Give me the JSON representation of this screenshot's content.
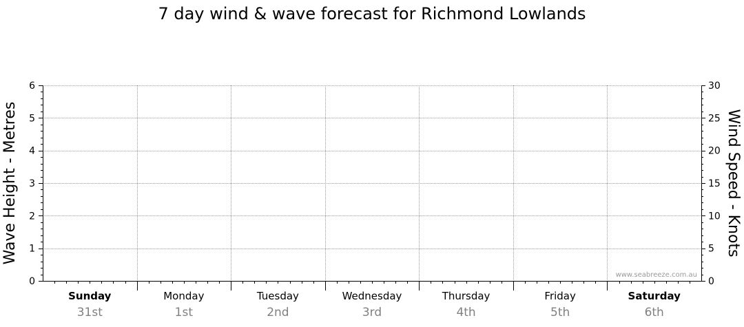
{
  "chart_data": {
    "type": "line",
    "title": "7 day wind & wave forecast for Richmond Lowlands",
    "ylabel": "Wave Height - Metres",
    "y2label": "Wind Speed - Knots",
    "ylim": [
      0,
      6
    ],
    "y2lim": [
      0,
      30
    ],
    "yticks": [
      "0",
      "1",
      "2",
      "3",
      "4",
      "5",
      "6"
    ],
    "y2ticks": [
      "0",
      "5",
      "10",
      "15",
      "20",
      "25",
      "30"
    ],
    "grid": true,
    "days": [
      {
        "name": "Sunday",
        "date": "31st",
        "bold": true
      },
      {
        "name": "Monday",
        "date": "1st",
        "bold": false
      },
      {
        "name": "Tuesday",
        "date": "2nd",
        "bold": false
      },
      {
        "name": "Wednesday",
        "date": "3rd",
        "bold": false
      },
      {
        "name": "Thursday",
        "date": "4th",
        "bold": false
      },
      {
        "name": "Friday",
        "date": "5th",
        "bold": false
      },
      {
        "name": "Saturday",
        "date": "6th",
        "bold": true
      }
    ],
    "series": [],
    "watermark": "www.seabreeze.com.au"
  },
  "colors": {
    "grid": "#999999",
    "axis": "#000000",
    "date_text": "#808080",
    "watermark": "#999999"
  }
}
